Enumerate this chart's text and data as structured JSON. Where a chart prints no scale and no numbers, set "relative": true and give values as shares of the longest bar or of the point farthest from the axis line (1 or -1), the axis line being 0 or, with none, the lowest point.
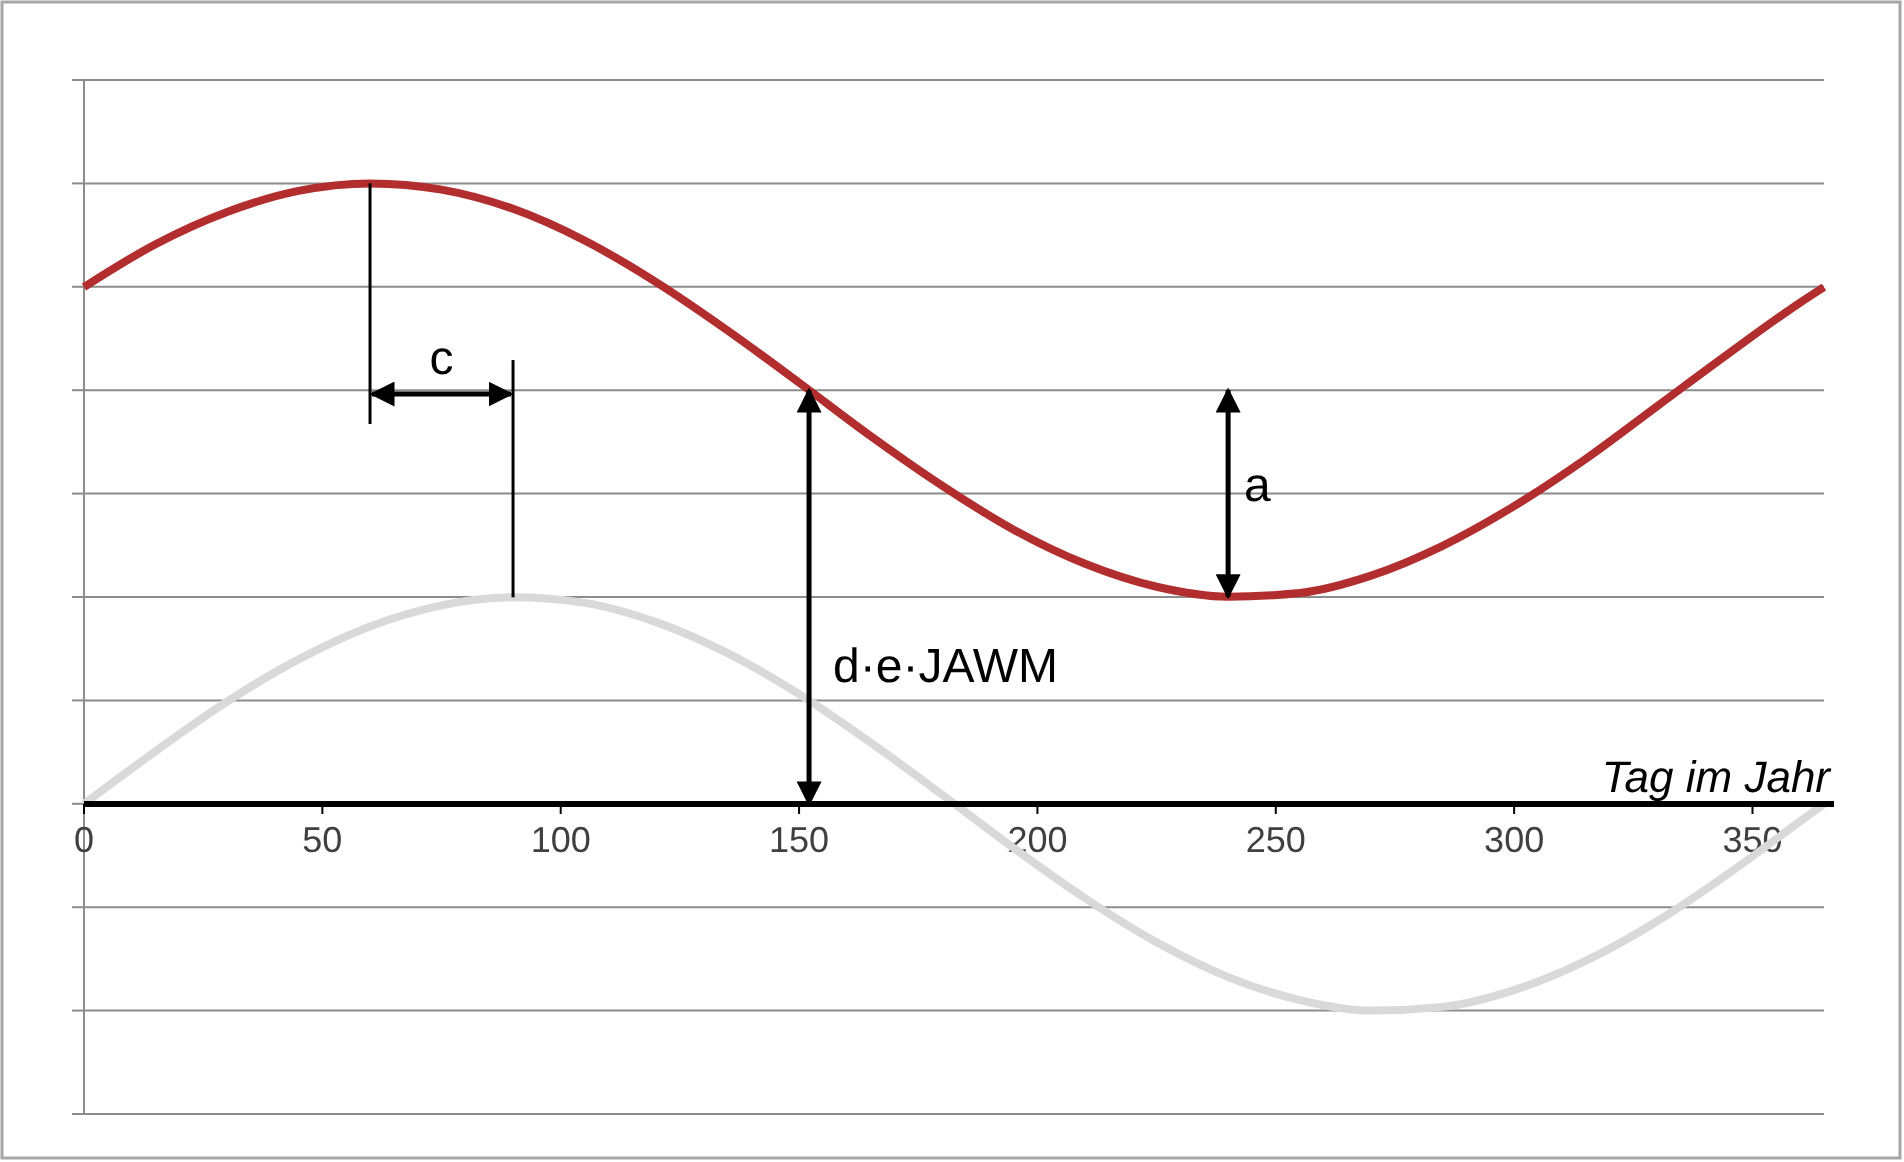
{
  "chart_data": {
    "type": "line",
    "relative": true,
    "xlabel": "Tag im Jahr",
    "xlim": [
      0,
      365
    ],
    "xticks": [
      0,
      50,
      100,
      150,
      200,
      250,
      300,
      350
    ],
    "tick_labels": "x",
    "grid": "y",
    "marker": "none",
    "line_style": "solid",
    "x": [
      0,
      15,
      30,
      45,
      60,
      75,
      90,
      105,
      120,
      135,
      150,
      165,
      180,
      195,
      210,
      225,
      240,
      255,
      270,
      285,
      300,
      315,
      330,
      345,
      360,
      365
    ],
    "series": [
      {
        "color": "#b22d2d",
        "values": [
          0.833,
          0.902,
          0.954,
          0.988,
          1.0,
          0.99,
          0.959,
          0.908,
          0.841,
          0.763,
          0.679,
          0.593,
          0.513,
          0.442,
          0.387,
          0.35,
          0.334,
          0.34,
          0.368,
          0.416,
          0.48,
          0.556,
          0.641,
          0.726,
          0.808,
          0.833
        ]
      },
      {
        "color": "#d9d9d9",
        "values": [
          0,
          0.085,
          0.165,
          0.233,
          0.286,
          0.32,
          0.333,
          0.324,
          0.293,
          0.243,
          0.177,
          0.099,
          0.015,
          -0.071,
          -0.152,
          -0.223,
          -0.279,
          -0.316,
          -0.333,
          -0.327,
          -0.3,
          -0.253,
          -0.189,
          -0.112,
          -0.028,
          0
        ]
      }
    ],
    "annotations": [
      "c",
      "a",
      "d·e·JAWM"
    ]
  }
}
